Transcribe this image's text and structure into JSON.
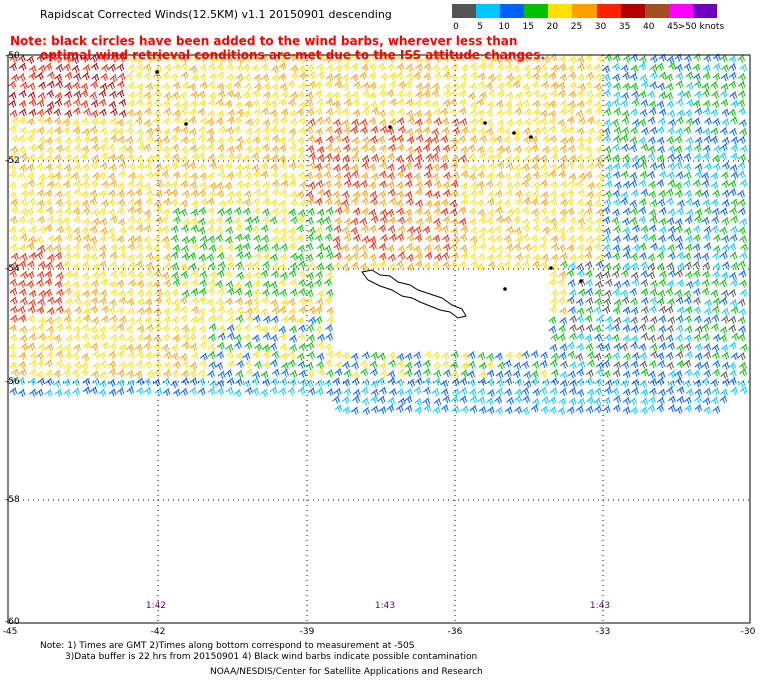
{
  "title": "Rapidscat Corrected Winds(12.5KM) v1.1 20150901 descending",
  "note_line1": "Note: black circles have been added to the wind barbs, wherever less than",
  "note_line2": "optimal wind retrieval conditions are met due to the ISS attitude changes.",
  "legend": {
    "labels": [
      "0",
      "5",
      "10",
      "15",
      "20",
      "25",
      "30",
      "35",
      "40",
      "45",
      ">50 knots"
    ],
    "colors": [
      "#555555",
      "#00c8ff",
      "#0060ff",
      "#00c000",
      "#ffe000",
      "#ffa000",
      "#ff2000",
      "#b00000",
      "#a05020",
      "#ff00ff",
      "#7000c0"
    ]
  },
  "y_axis": {
    "ticks": [
      "-50",
      "-52",
      "-54",
      "-56",
      "-58",
      "-60"
    ]
  },
  "x_axis": {
    "ticks": [
      "-45",
      "-42",
      "-39",
      "-36",
      "-33",
      "-30"
    ]
  },
  "times": [
    "1:42",
    "1:43",
    "1:43"
  ],
  "footer": {
    "line1": "Note: 1) Times are GMT 2)Times along bottom correspond to measurement at -50S",
    "line2": "3)Data buffer is 22 hrs from 20150901 4) Black wind barbs indicate possible contamination",
    "line3": "NOAA/NESDIS/Center for Satellite Applications and Research"
  },
  "palette": {
    "land": "#ffffff",
    "coast": "#000000",
    "grid": "#000000"
  }
}
